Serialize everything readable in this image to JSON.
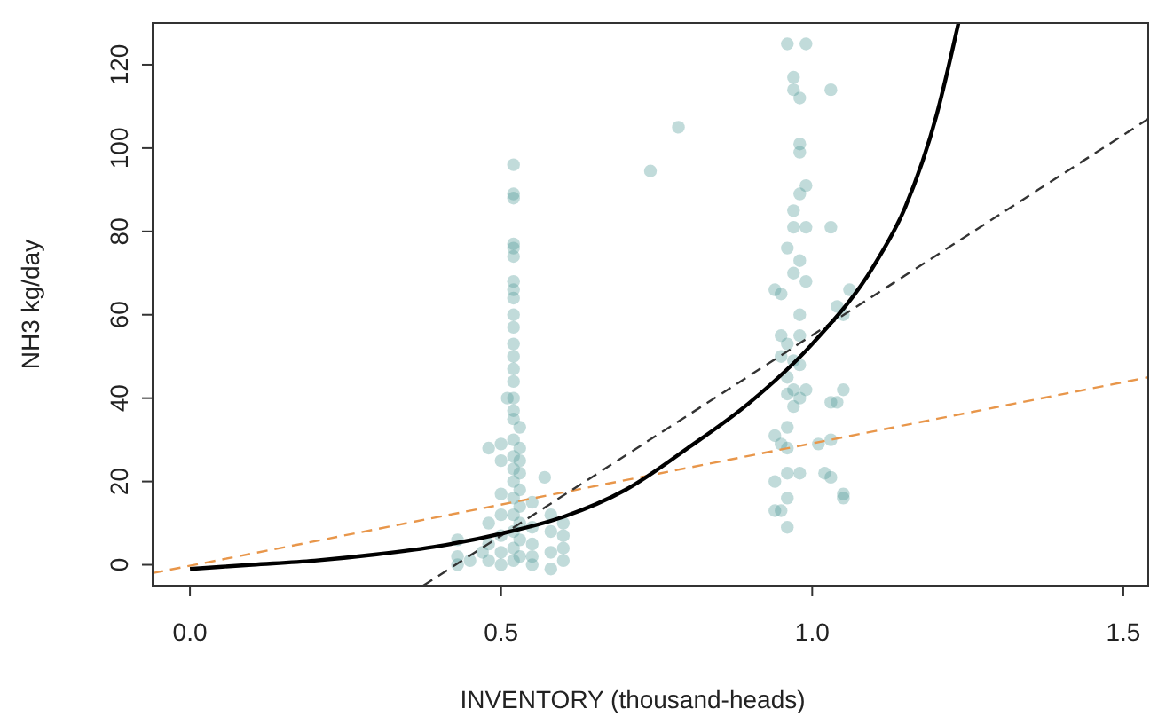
{
  "chart_data": {
    "type": "scatter",
    "xlabel": "INVENTORY (thousand-heads)",
    "ylabel": "NH3 kg/day",
    "xlim": [
      -0.06,
      1.54
    ],
    "ylim": [
      -5,
      130
    ],
    "xticks": [
      {
        "value": 0,
        "label": "0.0"
      },
      {
        "value": 0.5,
        "label": "0.5"
      },
      {
        "value": 1,
        "label": "1.0"
      },
      {
        "value": 1.5,
        "label": "1.5"
      }
    ],
    "yticks": [
      0,
      20,
      40,
      60,
      80,
      100,
      120
    ],
    "grid": false,
    "series": [
      {
        "color": "#4e9794",
        "marker": "circle",
        "x": [
          0.52,
          0.52,
          0.52,
          0.52,
          0.52,
          0.52,
          0.52,
          0.52,
          0.52,
          0.52,
          0.52,
          0.52,
          0.52,
          0.52,
          0.52,
          0.52,
          0.51,
          0.52,
          0.52,
          0.53,
          0.52,
          0.53,
          0.52,
          0.53,
          0.52,
          0.53,
          0.52,
          0.53,
          0.52,
          0.53,
          0.52,
          0.53,
          0.52,
          0.53,
          0.52,
          0.53,
          0.52,
          0.5,
          0.5,
          0.5,
          0.5,
          0.5,
          0.5,
          0.5,
          0.48,
          0.48,
          0.48,
          0.48,
          0.57,
          0.55,
          0.55,
          0.55,
          0.55,
          0.55,
          0.58,
          0.58,
          0.58,
          0.58,
          0.6,
          0.6,
          0.6,
          0.6,
          0.43,
          0.43,
          0.43,
          0.45,
          0.47,
          0.74,
          0.785,
          0.96,
          0.99,
          0.97,
          0.97,
          0.98,
          1.03,
          0.98,
          0.98,
          0.99,
          0.98,
          0.97,
          0.97,
          0.99,
          1.03,
          0.96,
          0.98,
          0.97,
          0.99,
          1.06,
          0.94,
          0.95,
          0.98,
          1.04,
          1.05,
          0.95,
          0.96,
          0.98,
          0.95,
          0.97,
          0.98,
          0.96,
          0.97,
          0.96,
          0.98,
          0.99,
          0.97,
          1.05,
          1.03,
          1.04,
          0.94,
          0.95,
          0.96,
          0.96,
          1.01,
          1.03,
          0.96,
          0.98,
          1.02,
          1.03,
          0.94,
          0.96,
          1.05,
          1.05,
          0.94,
          0.95,
          0.96
        ],
        "values": [
          96,
          89,
          88,
          77,
          76,
          74,
          68,
          66,
          64,
          60,
          57,
          53,
          50,
          47,
          44,
          40,
          40,
          37,
          35,
          33,
          30,
          28,
          26,
          25,
          23,
          22,
          20,
          18,
          16,
          14,
          12,
          10,
          8,
          6,
          4,
          2,
          1,
          29,
          25,
          17,
          12,
          7,
          3,
          0,
          28,
          10,
          5,
          1,
          21,
          15,
          9,
          5,
          2,
          0,
          12,
          8,
          3,
          -1,
          10,
          7,
          4,
          1,
          6,
          2,
          0,
          1,
          3,
          94.5,
          105,
          125,
          125,
          117,
          114,
          112,
          114,
          101,
          99,
          91,
          89,
          85,
          81,
          81,
          81,
          76,
          73,
          70,
          68,
          66,
          66,
          65,
          60,
          62,
          60,
          55,
          53,
          55,
          50,
          49,
          48,
          45,
          42,
          41,
          40,
          42,
          38,
          42,
          39,
          39,
          31,
          29,
          33,
          28,
          29,
          30,
          22,
          22,
          22,
          21,
          20,
          16,
          17,
          16,
          13,
          13,
          9
        ]
      },
      {
        "type": "line",
        "color": "#e8964a",
        "line_style": "dashed",
        "marker": "none",
        "x": [
          -0.06,
          1.54
        ],
        "values": [
          -2,
          45
        ]
      },
      {
        "type": "line",
        "color": "#333333",
        "line_style": "dashed",
        "marker": "none",
        "x": [
          0.375,
          1.54
        ],
        "values": [
          -5,
          107
        ]
      },
      {
        "type": "line",
        "color": "#000000",
        "line_style": "solid",
        "marker": "none",
        "x": [
          0,
          0.1,
          0.2,
          0.3,
          0.4,
          0.5,
          0.6,
          0.7,
          0.8,
          0.9,
          1.0,
          1.1,
          1.15,
          1.2,
          1.235
        ],
        "values": [
          -1,
          0,
          1,
          2.5,
          4.5,
          7.5,
          11.5,
          18,
          28,
          39,
          53,
          72,
          86,
          108,
          130
        ]
      }
    ]
  }
}
